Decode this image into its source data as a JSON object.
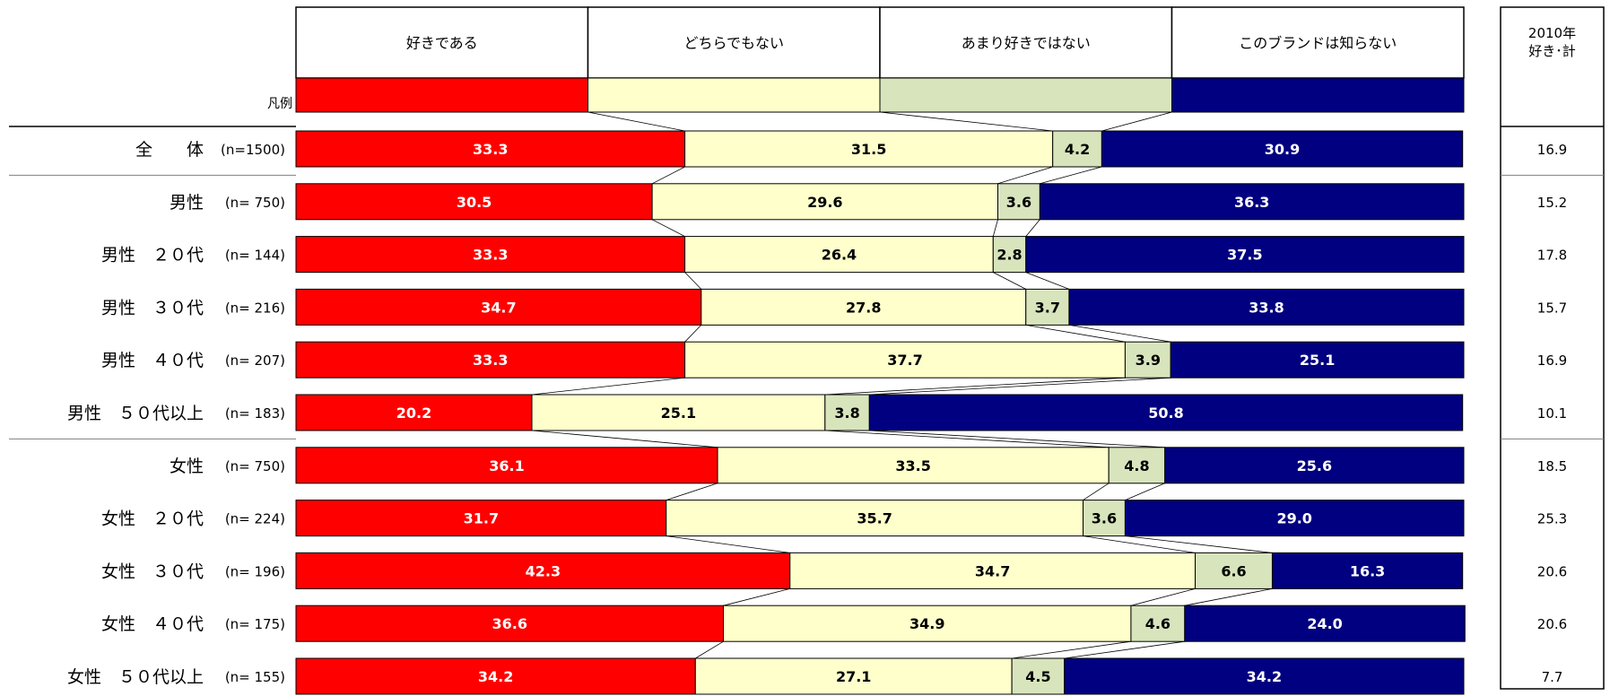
{
  "chart_data": {
    "type": "bar",
    "stacked": true,
    "percent": true,
    "xlim": [
      0,
      100
    ],
    "legend": {
      "caption": "凡例",
      "items": [
        "好きである",
        "どちらでもない",
        "あまり好きではない",
        "このブランドは知らない"
      ]
    },
    "series_colors": [
      "#ff0000",
      "#ffffcc",
      "#d8e4bc",
      "#000080"
    ],
    "label_colors": [
      "#ffffff",
      "#000000",
      "#000000",
      "#ffffff"
    ],
    "side_header": "2010年\n好き･計",
    "groups": [
      1,
      6
    ],
    "rows": [
      {
        "label": "全　　体",
        "n": "(n=1500)",
        "values": [
          33.3,
          31.5,
          4.2,
          30.9
        ],
        "labels": [
          "33.3",
          "31.5",
          "4.2",
          "30.9"
        ],
        "side": "16.9"
      },
      {
        "label": "男性",
        "n": "(n= 750)",
        "values": [
          30.5,
          29.6,
          3.6,
          36.3
        ],
        "labels": [
          "30.5",
          "29.6",
          "3.6",
          "36.3"
        ],
        "side": "15.2"
      },
      {
        "label": "男性　２０代",
        "n": "(n= 144)",
        "values": [
          33.3,
          26.4,
          2.8,
          37.5
        ],
        "labels": [
          "33.3",
          "26.4",
          "2.8",
          "37.5"
        ],
        "side": "17.8"
      },
      {
        "label": "男性　３０代",
        "n": "(n= 216)",
        "values": [
          34.7,
          27.8,
          3.7,
          33.8
        ],
        "labels": [
          "34.7",
          "27.8",
          "3.7",
          "33.8"
        ],
        "side": "15.7"
      },
      {
        "label": "男性　４０代",
        "n": "(n= 207)",
        "values": [
          33.3,
          37.7,
          3.9,
          25.1
        ],
        "labels": [
          "33.3",
          "37.7",
          "3.9",
          "25.1"
        ],
        "side": "16.9"
      },
      {
        "label": "男性　５０代以上",
        "n": "(n= 183)",
        "values": [
          20.2,
          25.1,
          3.8,
          50.8
        ],
        "labels": [
          "20.2",
          "25.1",
          "3.8",
          "50.8"
        ],
        "side": "10.1"
      },
      {
        "label": "女性",
        "n": "(n= 750)",
        "values": [
          36.1,
          33.5,
          4.8,
          25.6
        ],
        "labels": [
          "36.1",
          "33.5",
          "4.8",
          "25.6"
        ],
        "side": "18.5"
      },
      {
        "label": "女性　２０代",
        "n": "(n= 224)",
        "values": [
          31.7,
          35.7,
          3.6,
          29.0
        ],
        "labels": [
          "31.7",
          "35.7",
          "3.6",
          "29.0"
        ],
        "side": "25.3"
      },
      {
        "label": "女性　３０代",
        "n": "(n= 196)",
        "values": [
          42.3,
          34.7,
          6.6,
          16.3
        ],
        "labels": [
          "42.3",
          "34.7",
          "6.6",
          "16.3"
        ],
        "side": "20.6"
      },
      {
        "label": "女性　４０代",
        "n": "(n= 175)",
        "values": [
          36.6,
          34.9,
          4.6,
          24.0
        ],
        "labels": [
          "36.6",
          "34.9",
          "4.6",
          "24.0"
        ],
        "side": "20.6"
      },
      {
        "label": "女性　５０代以上",
        "n": "(n= 155)",
        "values": [
          34.2,
          27.1,
          4.5,
          34.2
        ],
        "labels": [
          "34.2",
          "27.1",
          "4.5",
          "34.2"
        ],
        "side": "7.7"
      }
    ]
  }
}
